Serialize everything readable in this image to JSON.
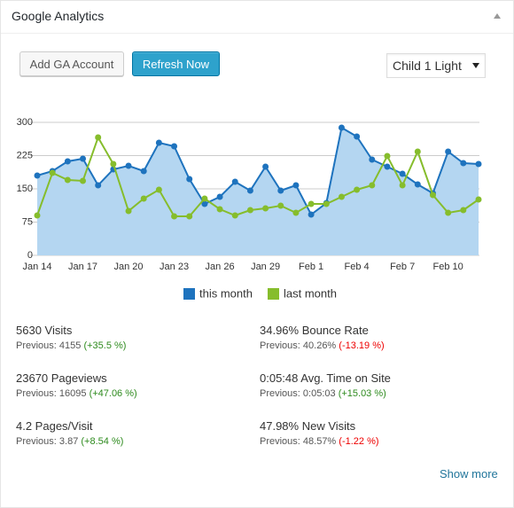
{
  "header": {
    "title": "Google Analytics"
  },
  "toolbar": {
    "buttons": [
      "Add GA Account",
      "Refresh Now"
    ],
    "select": "Child 1 Light"
  },
  "chart_data": {
    "type": "area",
    "categories": [
      "Jan 14",
      null,
      null,
      "Jan 17",
      null,
      null,
      "Jan 20",
      null,
      null,
      "Jan 23",
      null,
      null,
      "Jan 26",
      null,
      null,
      "Jan 29",
      null,
      null,
      "Feb 1",
      null,
      null,
      "Feb 4",
      null,
      null,
      "Feb 7",
      null,
      null,
      "Feb 10",
      null,
      null
    ],
    "series": [
      {
        "name": "this month",
        "color": "#1e73be",
        "fill": "#b4d6f1",
        "values": [
          180,
          190,
          212,
          218,
          158,
          194,
          202,
          190,
          254,
          246,
          172,
          116,
          132,
          166,
          146,
          200,
          146,
          158,
          92,
          118,
          288,
          268,
          216,
          200,
          184,
          160,
          140,
          234,
          208,
          206
        ]
      },
      {
        "name": "last month",
        "color": "#86bd2c",
        "values": [
          90,
          186,
          170,
          168,
          266,
          206,
          100,
          128,
          148,
          88,
          88,
          128,
          104,
          90,
          102,
          106,
          112,
          96,
          116,
          116,
          132,
          148,
          158,
          224,
          158,
          234,
          136,
          96,
          102,
          126
        ]
      }
    ],
    "ylim": [
      0,
      300
    ],
    "yticks": [
      0,
      75,
      150,
      225,
      300
    ],
    "grid": true
  },
  "stats": [
    {
      "label": "5630 Visits",
      "previous": "Previous: 4155",
      "change": "(+35.5 %)"
    },
    {
      "label": "34.96% Bounce Rate",
      "previous": "Previous: 40.26%",
      "change": "(-13.19 %)"
    },
    {
      "label": "23670 Pageviews",
      "previous": "Previous: 16095",
      "change": "(+47.06 %)"
    },
    {
      "label": "0:05:48 Avg. Time on Site",
      "previous": "Previous: 0:05:03",
      "change": "(+15.03 %)"
    },
    {
      "label": "4.2 Pages/Visit",
      "previous": "Previous: 3.87",
      "change": "(+8.54 %)"
    },
    {
      "label": "47.98% New Visits",
      "previous": "Previous: 48.57%",
      "change": "(-1.22 %)"
    }
  ],
  "footer": {
    "link": "Show more"
  }
}
